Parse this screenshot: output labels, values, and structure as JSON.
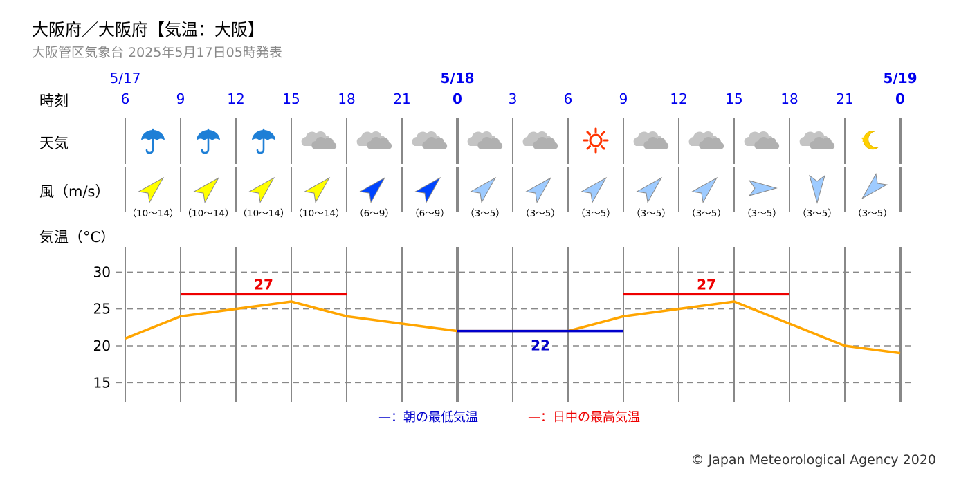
{
  "header": {
    "title": "大阪府／大阪府【気温：大阪】",
    "subtitle": "大阪管区気象台 2025年5月17日05時発表"
  },
  "row_labels": {
    "time": "時刻",
    "weather": "天気",
    "wind": "風（m/s）",
    "temperature": "気温（°C）"
  },
  "legend": {
    "min_label": "—：朝の最低気温",
    "max_label": "—：日中の最高気温"
  },
  "copyright": "© Japan Meteorological Agency 2020",
  "colors": {
    "hour": "#0000ee",
    "temp_line": "#ffa500",
    "max_line": "#ee0000",
    "min_line": "#0000cc",
    "grid": "#888888",
    "wind_strong": "#ffff00",
    "wind_mid": "#0044ff",
    "wind_weak": "#9ecbff"
  },
  "chart_data": {
    "type": "line",
    "dates": [
      {
        "label": "5/17",
        "at_hour_index": 0,
        "bold": false
      },
      {
        "label": "5/18",
        "at_hour_index": 6,
        "bold": true
      },
      {
        "label": "5/19",
        "at_hour_index": 14,
        "bold": true
      }
    ],
    "hours": [
      "6",
      "9",
      "12",
      "15",
      "18",
      "21",
      "0",
      "3",
      "6",
      "9",
      "12",
      "15",
      "18",
      "21",
      "0"
    ],
    "weather": [
      "rain-umbrella-icon",
      "rain-umbrella-icon",
      "rain-umbrella-icon",
      "cloudy-icon",
      "cloudy-icon",
      "cloudy-icon",
      "cloudy-icon",
      "cloudy-icon",
      "sunny-icon",
      "cloudy-icon",
      "cloudy-icon",
      "cloudy-icon",
      "cloudy-icon",
      "clear-night-icon"
    ],
    "wind": [
      {
        "dir": "SW",
        "strength": "strong",
        "range": "（10〜14）"
      },
      {
        "dir": "SW",
        "strength": "strong",
        "range": "（10〜14）"
      },
      {
        "dir": "SW",
        "strength": "strong",
        "range": "（10〜14）"
      },
      {
        "dir": "SW",
        "strength": "strong",
        "range": "（10〜14）"
      },
      {
        "dir": "SW",
        "strength": "mid",
        "range": "（6〜9）"
      },
      {
        "dir": "SW",
        "strength": "mid",
        "range": "（6〜9）"
      },
      {
        "dir": "SW",
        "strength": "weak",
        "range": "（3〜5）"
      },
      {
        "dir": "SW",
        "strength": "weak",
        "range": "（3〜5）"
      },
      {
        "dir": "SW",
        "strength": "weak",
        "range": "（3〜5）"
      },
      {
        "dir": "SW",
        "strength": "weak",
        "range": "（3〜5）"
      },
      {
        "dir": "SW",
        "strength": "weak",
        "range": "（3〜5）"
      },
      {
        "dir": "W",
        "strength": "weak",
        "range": "（3〜5）"
      },
      {
        "dir": "N",
        "strength": "weak",
        "range": "（3〜5）"
      },
      {
        "dir": "NE",
        "strength": "weak",
        "range": "（3〜5）"
      }
    ],
    "temperature": [
      21,
      24,
      25,
      26,
      24,
      23,
      22,
      22,
      22,
      24,
      25,
      26,
      23,
      20,
      19
    ],
    "max_temps": [
      {
        "value": 27,
        "from_index": 1,
        "to_index": 4,
        "label": "27"
      },
      {
        "value": 27,
        "from_index": 9,
        "to_index": 12,
        "label": "27"
      }
    ],
    "min_temps": [
      {
        "value": 22,
        "from_index": 6,
        "to_index": 9,
        "label": "22"
      }
    ],
    "y_ticks": [
      "30",
      "25",
      "20",
      "15"
    ],
    "y_tick_values": [
      30,
      25,
      20,
      15
    ],
    "ylim": [
      12.5,
      32
    ],
    "grid": true
  }
}
